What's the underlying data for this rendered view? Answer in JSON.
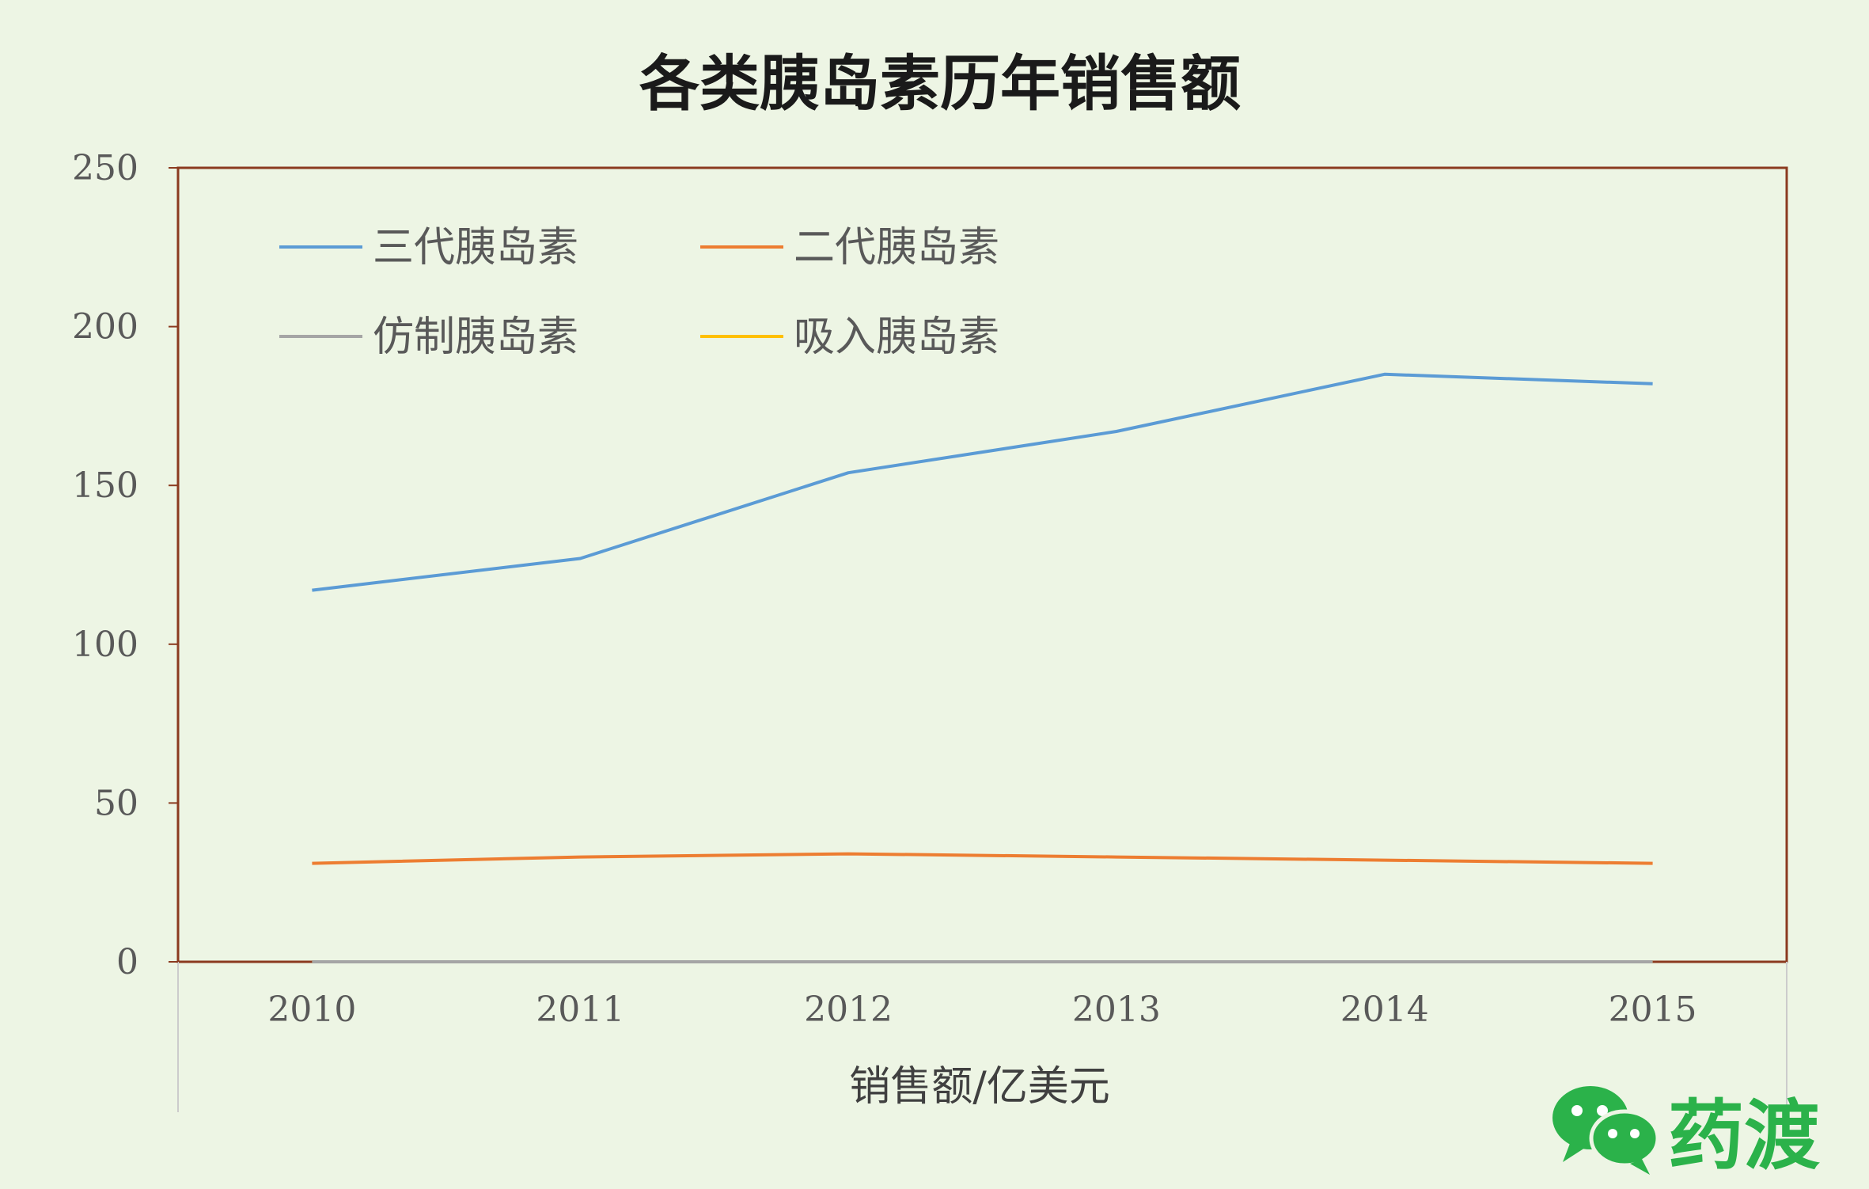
{
  "chart_data": {
    "type": "line",
    "title": "各类胰岛素历年销售额",
    "xlabel": "销售额/亿美元",
    "ylabel": "",
    "categories": [
      "2010",
      "2011",
      "2012",
      "2013",
      "2014",
      "2015"
    ],
    "ylim": [
      0,
      250
    ],
    "yticks": [
      "0",
      "50",
      "100",
      "150",
      "200",
      "250"
    ],
    "grid": false,
    "legend_position": "top-left",
    "series": [
      {
        "name": "三代胰岛素",
        "color": "#5b9bd5",
        "values": [
          117,
          127,
          154,
          167,
          185,
          182
        ]
      },
      {
        "name": "二代胰岛素",
        "color": "#ed7d31",
        "values": [
          31,
          33,
          34,
          33,
          32,
          31
        ]
      },
      {
        "name": "仿制胰岛素",
        "color": "#a5a5a5",
        "values": [
          0,
          0,
          0,
          0,
          0,
          0
        ]
      },
      {
        "name": "吸入胰岛素",
        "color": "#ffc000",
        "values": [
          0,
          0,
          0,
          0,
          0,
          0
        ]
      }
    ]
  },
  "brand": {
    "name": "药渡",
    "icon": "wechat-icon",
    "color": "#2bb24a"
  }
}
